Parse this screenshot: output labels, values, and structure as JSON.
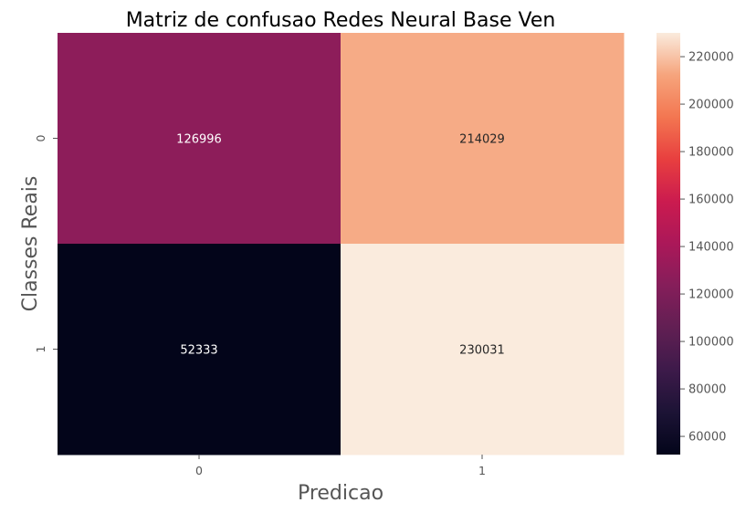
{
  "chart_data": {
    "type": "heatmap",
    "title": "Matriz de confusao Redes Neural Base Ven",
    "xlabel": "Predicao",
    "ylabel": "Classes Reais",
    "x_categories": [
      "0",
      "1"
    ],
    "y_categories": [
      "0",
      "1"
    ],
    "values": [
      [
        126996,
        214029
      ],
      [
        52333,
        230031
      ]
    ],
    "cell_labels": [
      [
        "126996",
        "214029"
      ],
      [
        "52333",
        "230031"
      ]
    ],
    "colormap": "rocket",
    "colorbar": {
      "range": [
        52333,
        230031
      ],
      "ticks": [
        60000,
        80000,
        100000,
        120000,
        140000,
        160000,
        180000,
        200000,
        220000
      ],
      "tick_labels": [
        "60000",
        "80000",
        "100000",
        "120000",
        "140000",
        "160000",
        "180000",
        "200000",
        "220000"
      ]
    }
  }
}
